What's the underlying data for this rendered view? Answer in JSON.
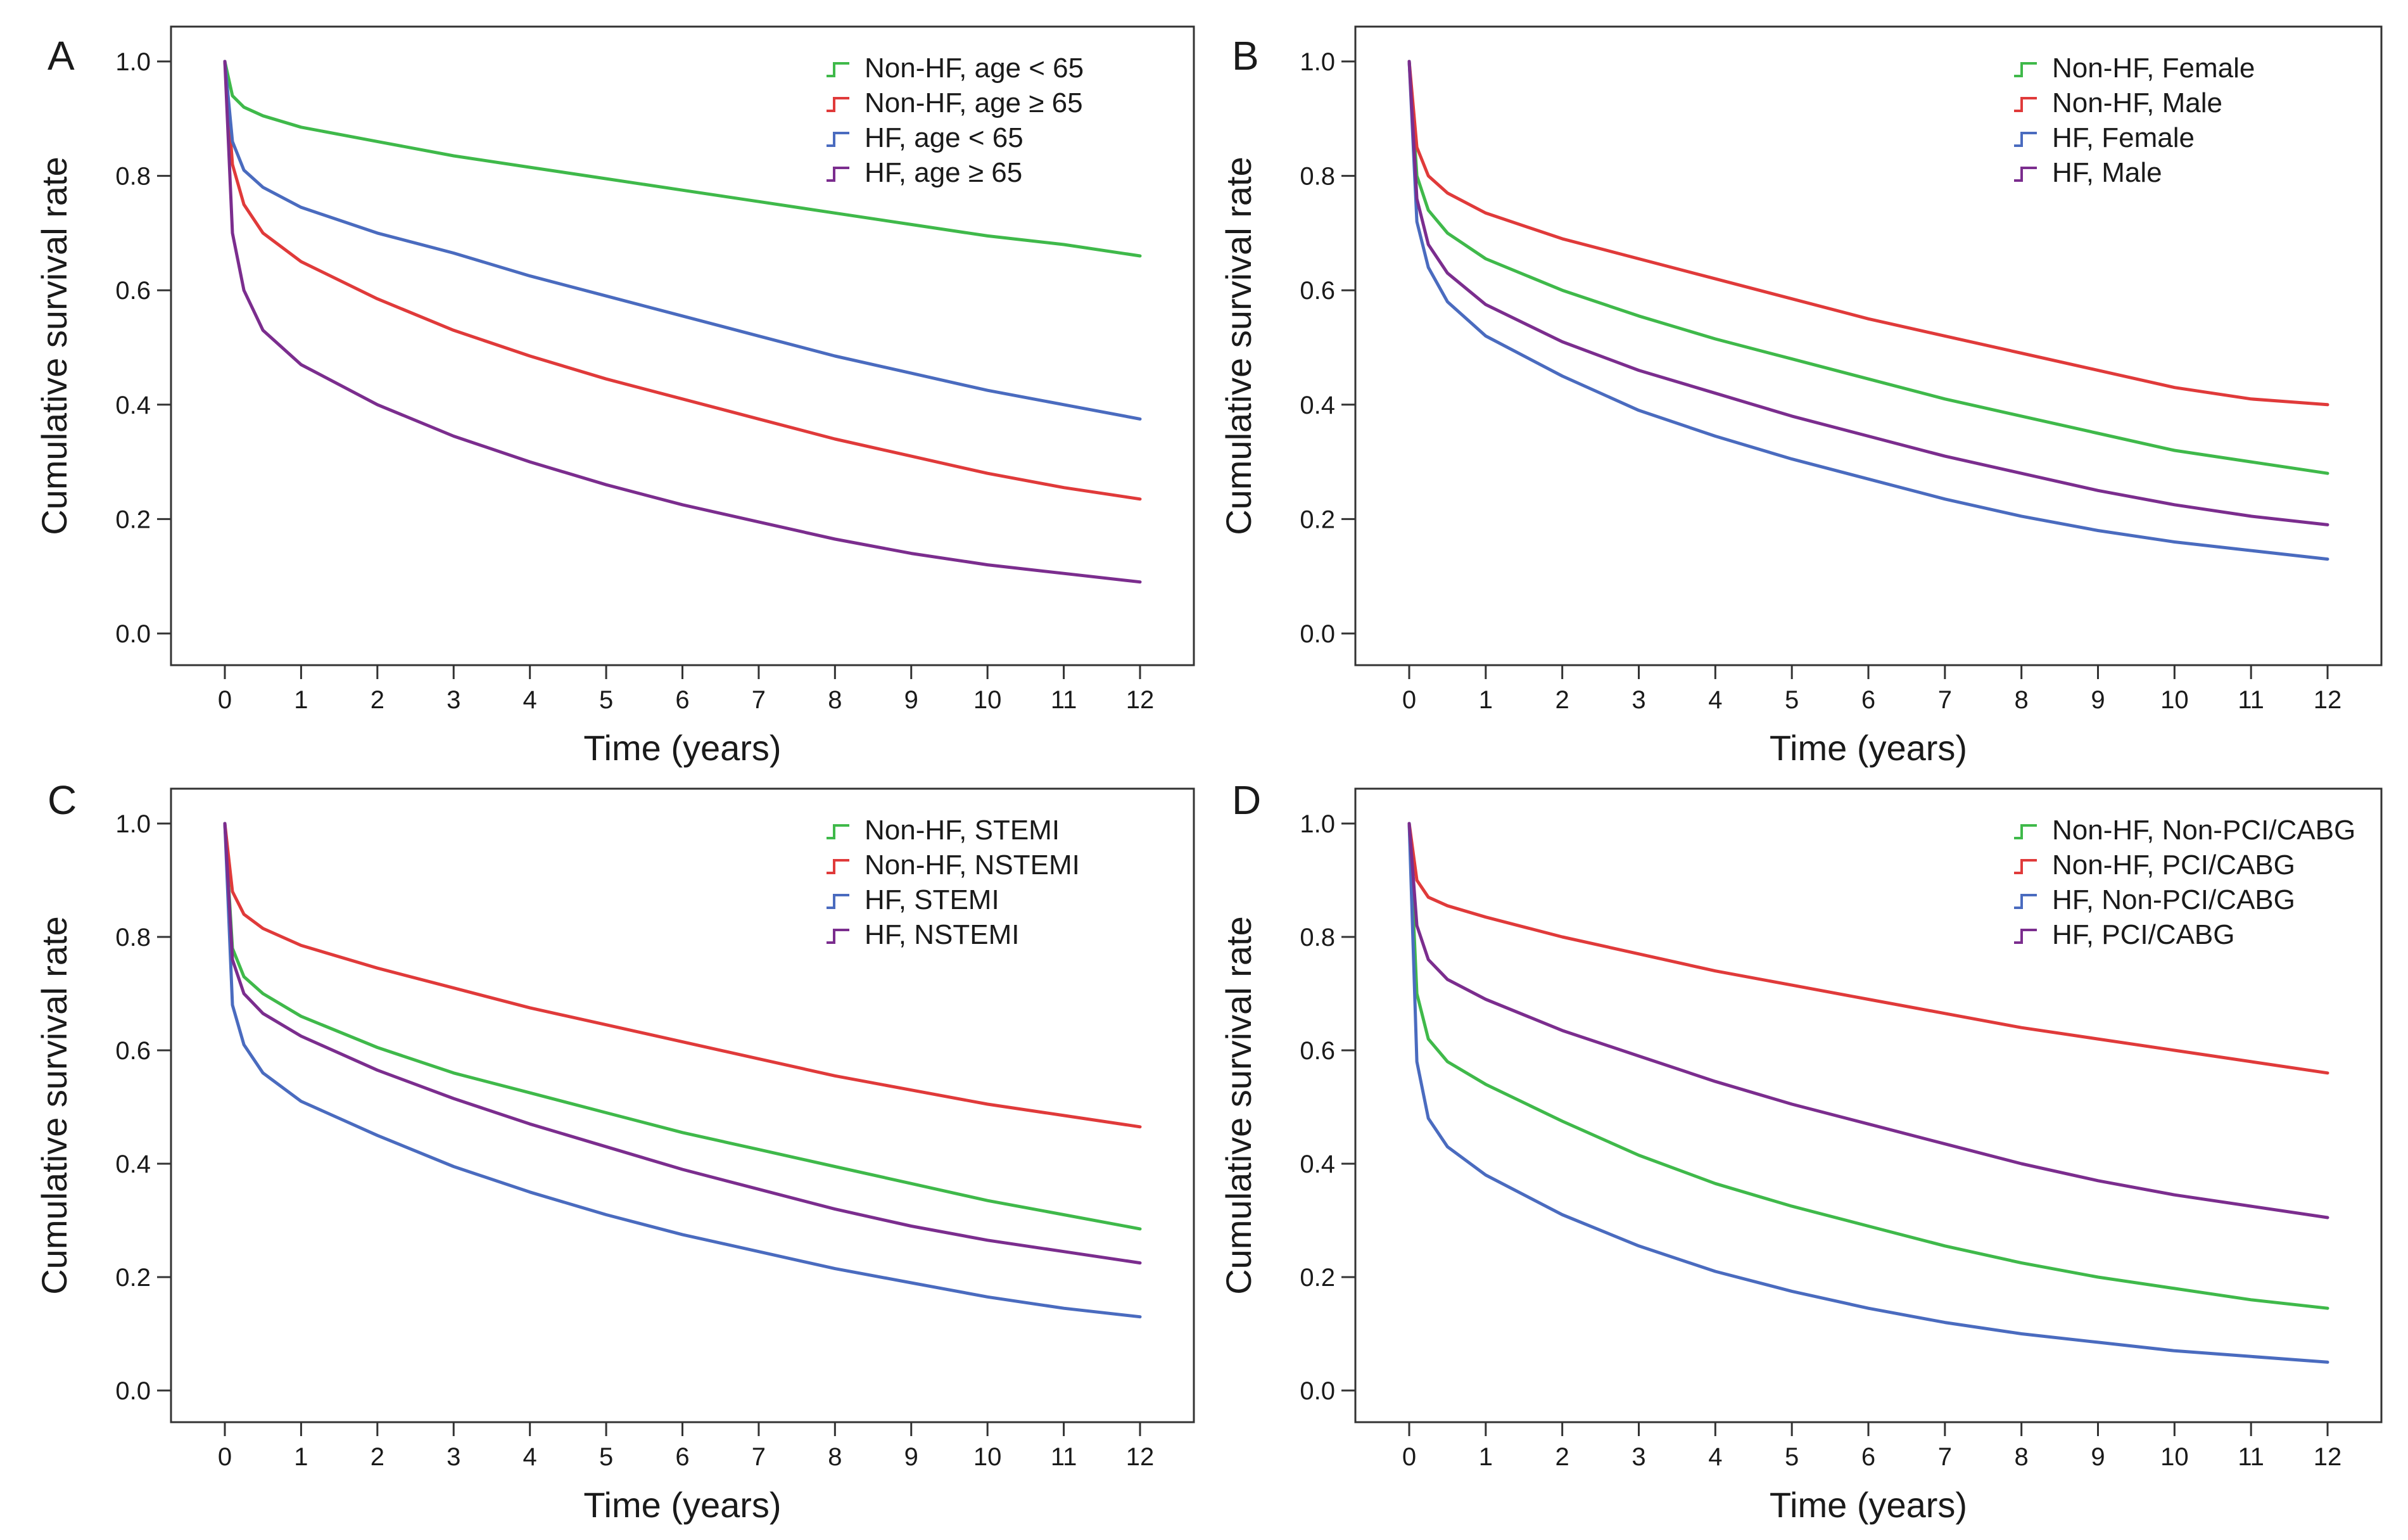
{
  "figure": {
    "colors": {
      "green": "#3fb94a",
      "red": "#e03a3a",
      "blue": "#4a6bbf",
      "purple": "#7b2d8e"
    },
    "chart_data": [
      {
        "panel": "A",
        "type": "line",
        "xlabel": "Time (years)",
        "ylabel": "Cumulative survival rate",
        "xlim": [
          0,
          12
        ],
        "ylim": [
          0,
          1
        ],
        "x_ticks": [
          "0",
          "1",
          "2",
          "3",
          "4",
          "5",
          "6",
          "7",
          "8",
          "9",
          "10",
          "11",
          "12"
        ],
        "y_ticks": [
          "0.0",
          "0.2",
          "0.4",
          "0.6",
          "0.8",
          "1.0"
        ],
        "legend_position": "top-right",
        "x": [
          0,
          0.1,
          0.25,
          0.5,
          1,
          2,
          3,
          4,
          5,
          6,
          7,
          8,
          9,
          10,
          11,
          12
        ],
        "series": [
          {
            "name": "Non-HF, age < 65",
            "color": "green",
            "values": [
              1.0,
              0.94,
              0.92,
              0.905,
              0.885,
              0.86,
              0.835,
              0.815,
              0.795,
              0.775,
              0.755,
              0.735,
              0.715,
              0.695,
              0.68,
              0.66
            ]
          },
          {
            "name": "Non-HF, age ≥ 65",
            "color": "red",
            "values": [
              1.0,
              0.82,
              0.75,
              0.7,
              0.65,
              0.585,
              0.53,
              0.485,
              0.445,
              0.41,
              0.375,
              0.34,
              0.31,
              0.28,
              0.255,
              0.235
            ]
          },
          {
            "name": "HF, age < 65",
            "color": "blue",
            "values": [
              1.0,
              0.86,
              0.81,
              0.78,
              0.745,
              0.7,
              0.665,
              0.625,
              0.59,
              0.555,
              0.52,
              0.485,
              0.455,
              0.425,
              0.4,
              0.375
            ]
          },
          {
            "name": "HF, age ≥ 65",
            "color": "purple",
            "values": [
              1.0,
              0.7,
              0.6,
              0.53,
              0.47,
              0.4,
              0.345,
              0.3,
              0.26,
              0.225,
              0.195,
              0.165,
              0.14,
              0.12,
              0.105,
              0.09
            ]
          }
        ]
      },
      {
        "panel": "B",
        "type": "line",
        "xlabel": "Time (years)",
        "ylabel": "Cumulative survival rate",
        "xlim": [
          0,
          12
        ],
        "ylim": [
          0,
          1
        ],
        "x_ticks": [
          "0",
          "1",
          "2",
          "3",
          "4",
          "5",
          "6",
          "7",
          "8",
          "9",
          "10",
          "11",
          "12"
        ],
        "y_ticks": [
          "0.0",
          "0.2",
          "0.4",
          "0.6",
          "0.8",
          "1.0"
        ],
        "legend_position": "top-right",
        "x": [
          0,
          0.1,
          0.25,
          0.5,
          1,
          2,
          3,
          4,
          5,
          6,
          7,
          8,
          9,
          10,
          11,
          12
        ],
        "series": [
          {
            "name": "Non-HF, Female",
            "color": "green",
            "values": [
              1.0,
              0.8,
              0.74,
              0.7,
              0.655,
              0.6,
              0.555,
              0.515,
              0.48,
              0.445,
              0.41,
              0.38,
              0.35,
              0.32,
              0.3,
              0.28
            ]
          },
          {
            "name": "Non-HF, Male",
            "color": "red",
            "values": [
              1.0,
              0.85,
              0.8,
              0.77,
              0.735,
              0.69,
              0.655,
              0.62,
              0.585,
              0.55,
              0.52,
              0.49,
              0.46,
              0.43,
              0.41,
              0.4
            ]
          },
          {
            "name": "HF, Female",
            "color": "blue",
            "values": [
              1.0,
              0.72,
              0.64,
              0.58,
              0.52,
              0.45,
              0.39,
              0.345,
              0.305,
              0.27,
              0.235,
              0.205,
              0.18,
              0.16,
              0.145,
              0.13
            ]
          },
          {
            "name": "HF, Male",
            "color": "purple",
            "values": [
              1.0,
              0.76,
              0.68,
              0.63,
              0.575,
              0.51,
              0.46,
              0.42,
              0.38,
              0.345,
              0.31,
              0.28,
              0.25,
              0.225,
              0.205,
              0.19
            ]
          }
        ]
      },
      {
        "panel": "C",
        "type": "line",
        "xlabel": "Time (years)",
        "ylabel": "Cumulative survival rate",
        "xlim": [
          0,
          12
        ],
        "ylim": [
          0,
          1
        ],
        "x_ticks": [
          "0",
          "1",
          "2",
          "3",
          "4",
          "5",
          "6",
          "7",
          "8",
          "9",
          "10",
          "11",
          "12"
        ],
        "y_ticks": [
          "0.0",
          "0.2",
          "0.4",
          "0.6",
          "0.8",
          "1.0"
        ],
        "legend_position": "top-right",
        "x": [
          0,
          0.1,
          0.25,
          0.5,
          1,
          2,
          3,
          4,
          5,
          6,
          7,
          8,
          9,
          10,
          11,
          12
        ],
        "series": [
          {
            "name": "Non-HF, STEMI",
            "color": "green",
            "values": [
              1.0,
              0.78,
              0.73,
              0.7,
              0.66,
              0.605,
              0.56,
              0.525,
              0.49,
              0.455,
              0.425,
              0.395,
              0.365,
              0.335,
              0.31,
              0.285
            ]
          },
          {
            "name": "Non-HF, NSTEMI",
            "color": "red",
            "values": [
              1.0,
              0.88,
              0.84,
              0.815,
              0.785,
              0.745,
              0.71,
              0.675,
              0.645,
              0.615,
              0.585,
              0.555,
              0.53,
              0.505,
              0.485,
              0.465
            ]
          },
          {
            "name": "HF, STEMI",
            "color": "blue",
            "values": [
              1.0,
              0.68,
              0.61,
              0.56,
              0.51,
              0.45,
              0.395,
              0.35,
              0.31,
              0.275,
              0.245,
              0.215,
              0.19,
              0.165,
              0.145,
              0.13
            ]
          },
          {
            "name": "HF, NSTEMI",
            "color": "purple",
            "values": [
              1.0,
              0.76,
              0.7,
              0.665,
              0.625,
              0.565,
              0.515,
              0.47,
              0.43,
              0.39,
              0.355,
              0.32,
              0.29,
              0.265,
              0.245,
              0.225
            ]
          }
        ]
      },
      {
        "panel": "D",
        "type": "line",
        "xlabel": "Time (years)",
        "ylabel": "Cumulative survival rate",
        "xlim": [
          0,
          12
        ],
        "ylim": [
          0,
          1
        ],
        "x_ticks": [
          "0",
          "1",
          "2",
          "3",
          "4",
          "5",
          "6",
          "7",
          "8",
          "9",
          "10",
          "11",
          "12"
        ],
        "y_ticks": [
          "0.0",
          "0.2",
          "0.4",
          "0.6",
          "0.8",
          "1.0"
        ],
        "legend_position": "top-right",
        "x": [
          0,
          0.1,
          0.25,
          0.5,
          1,
          2,
          3,
          4,
          5,
          6,
          7,
          8,
          9,
          10,
          11,
          12
        ],
        "series": [
          {
            "name": "Non-HF, Non-PCI/CABG",
            "color": "green",
            "values": [
              1.0,
              0.7,
              0.62,
              0.58,
              0.54,
              0.475,
              0.415,
              0.365,
              0.325,
              0.29,
              0.255,
              0.225,
              0.2,
              0.18,
              0.16,
              0.145
            ]
          },
          {
            "name": "Non-HF, PCI/CABG",
            "color": "red",
            "values": [
              1.0,
              0.9,
              0.87,
              0.855,
              0.835,
              0.8,
              0.77,
              0.74,
              0.715,
              0.69,
              0.665,
              0.64,
              0.62,
              0.6,
              0.58,
              0.56
            ]
          },
          {
            "name": "HF, Non-PCI/CABG",
            "color": "blue",
            "values": [
              1.0,
              0.58,
              0.48,
              0.43,
              0.38,
              0.31,
              0.255,
              0.21,
              0.175,
              0.145,
              0.12,
              0.1,
              0.085,
              0.07,
              0.06,
              0.05
            ]
          },
          {
            "name": "HF, PCI/CABG",
            "color": "purple",
            "values": [
              1.0,
              0.82,
              0.76,
              0.725,
              0.69,
              0.635,
              0.59,
              0.545,
              0.505,
              0.47,
              0.435,
              0.4,
              0.37,
              0.345,
              0.325,
              0.305
            ]
          }
        ]
      }
    ]
  }
}
